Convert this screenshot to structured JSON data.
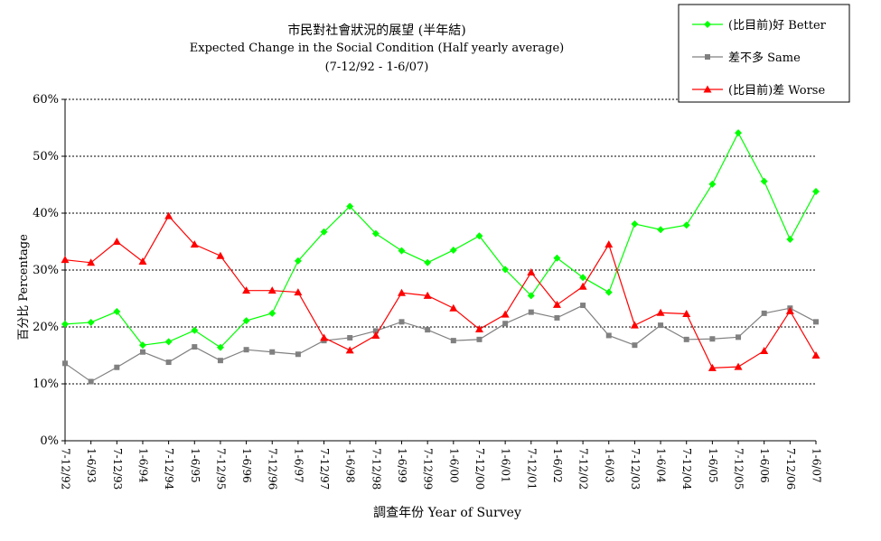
{
  "chart_data": {
    "type": "line",
    "title_lines": [
      "市民對社會狀況的展望 (半年結)",
      "Expected Change in the Social Condition  (Half yearly average)",
      "(7-12/92 - 1-6/07)"
    ],
    "xlabel": "調查年份 Year of Survey",
    "ylabel": "百分比 Percentage",
    "ylim": [
      0,
      60
    ],
    "yticks": [
      "0%",
      "10%",
      "20%",
      "30%",
      "40%",
      "50%",
      "60%"
    ],
    "grid": true,
    "legend_position": "top-right",
    "categories": [
      "7-12/92",
      "1-6/93",
      "7-12/93",
      "1-6/94",
      "7-12/94",
      "1-6/95",
      "7-12/95",
      "1-6/96",
      "7-12/96",
      "1-6/97",
      "7-12/97",
      "1-6/98",
      "7-12/98",
      "1-6/99",
      "7-12/99",
      "1-6/00",
      "7-12/00",
      "1-6/01",
      "7-12/01",
      "1-6/02",
      "7-12/02",
      "1-6/03",
      "7-12/03",
      "1-6/04",
      "7-12/04",
      "1-6/05",
      "7-12/05",
      "1-6/06",
      "7-12/06",
      "1-6/07"
    ],
    "series": [
      {
        "name": "(比目前)好 Better",
        "color": "#00ff00",
        "marker": "diamond",
        "values": [
          20.5,
          20.8,
          22.7,
          16.8,
          17.4,
          19.4,
          16.4,
          21.1,
          22.4,
          31.6,
          36.7,
          41.2,
          36.4,
          33.4,
          31.3,
          33.5,
          36.0,
          30.1,
          25.5,
          32.1,
          28.7,
          26.1,
          38.1,
          37.1,
          37.9,
          45.1,
          54.1,
          45.6,
          35.4,
          43.8
        ]
      },
      {
        "name": "差不多 Same",
        "color": "#808080",
        "marker": "square",
        "values": [
          13.6,
          10.4,
          12.9,
          15.6,
          13.8,
          16.5,
          14.1,
          16.0,
          15.6,
          15.2,
          17.6,
          18.1,
          19.3,
          20.9,
          19.5,
          17.6,
          17.8,
          20.6,
          22.6,
          21.6,
          23.8,
          18.5,
          16.8,
          20.3,
          17.8,
          17.9,
          18.2,
          22.4,
          23.3,
          20.9
        ]
      },
      {
        "name": "(比目前)差 Worse",
        "color": "#ff0000",
        "marker": "triangle",
        "values": [
          31.8,
          31.3,
          35.0,
          31.5,
          39.5,
          34.5,
          32.5,
          26.4,
          26.4,
          26.1,
          18.1,
          15.9,
          18.5,
          26.0,
          25.5,
          23.3,
          19.6,
          22.2,
          29.6,
          23.9,
          27.1,
          34.5,
          20.3,
          22.5,
          22.3,
          12.8,
          13.0,
          15.8,
          22.8,
          15.0
        ]
      }
    ]
  }
}
